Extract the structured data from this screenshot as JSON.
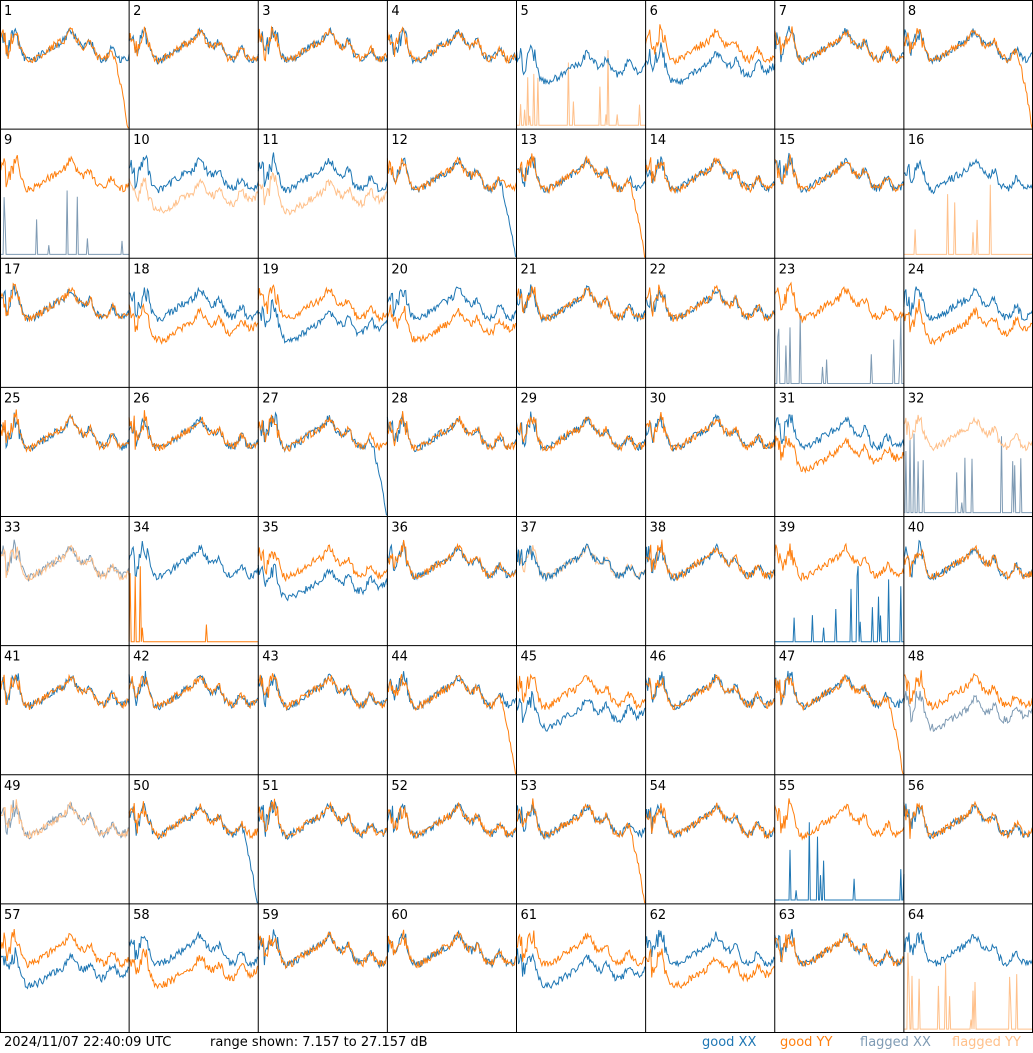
{
  "chart_data": {
    "type": "line",
    "grid": "8x8 small multiples",
    "footer": {
      "timestamp": "2024/11/07 22:40:09 UTC",
      "range_text": "range shown: 7.157 to 27.157 dB"
    },
    "ylim": [
      7.157,
      27.157
    ],
    "legend": {
      "placement": "bottom-right",
      "entries": [
        {
          "name": "good XX",
          "color": "#1f77b4"
        },
        {
          "name": "good YY",
          "color": "#ff7f0e"
        },
        {
          "name": "flagged XX",
          "color": "#7f9bb4"
        },
        {
          "name": "flagged YY",
          "color": "#ffc08a"
        }
      ]
    },
    "panels": [
      {
        "label": "1",
        "xx": "good",
        "yy": "good",
        "xx_mode": "normal",
        "yy_mode": "dropoff"
      },
      {
        "label": "2",
        "xx": "good",
        "yy": "good",
        "xx_mode": "normal",
        "yy_mode": "normal"
      },
      {
        "label": "3",
        "xx": "good",
        "yy": "good",
        "xx_mode": "normal",
        "yy_mode": "normal"
      },
      {
        "label": "4",
        "xx": "good",
        "yy": "good",
        "xx_mode": "normal",
        "yy_mode": "normal"
      },
      {
        "label": "5",
        "xx": "good",
        "yy": "flagged",
        "xx_mode": "low",
        "yy_mode": "spikes"
      },
      {
        "label": "6",
        "xx": "good",
        "yy": "good",
        "xx_mode": "low",
        "yy_mode": "normal"
      },
      {
        "label": "7",
        "xx": "good",
        "yy": "good",
        "xx_mode": "normal",
        "yy_mode": "normal"
      },
      {
        "label": "8",
        "xx": "good",
        "yy": "good",
        "xx_mode": "normal",
        "yy_mode": "dropoff"
      },
      {
        "label": "9",
        "xx": "flagged",
        "yy": "good",
        "xx_mode": "spikes",
        "yy_mode": "normal"
      },
      {
        "label": "10",
        "xx": "good",
        "yy": "flagged",
        "xx_mode": "normal",
        "yy_mode": "low"
      },
      {
        "label": "11",
        "xx": "good",
        "yy": "flagged",
        "xx_mode": "normal",
        "yy_mode": "low"
      },
      {
        "label": "12",
        "xx": "good",
        "yy": "good",
        "xx_mode": "dropoff",
        "yy_mode": "normal"
      },
      {
        "label": "13",
        "xx": "good",
        "yy": "good",
        "xx_mode": "normal",
        "yy_mode": "dropoff"
      },
      {
        "label": "14",
        "xx": "good",
        "yy": "good",
        "xx_mode": "normal",
        "yy_mode": "normal"
      },
      {
        "label": "15",
        "xx": "good",
        "yy": "good",
        "xx_mode": "normal",
        "yy_mode": "normal"
      },
      {
        "label": "16",
        "xx": "good",
        "yy": "flagged",
        "xx_mode": "normal",
        "yy_mode": "spikes"
      },
      {
        "label": "17",
        "xx": "good",
        "yy": "good",
        "xx_mode": "normal",
        "yy_mode": "normal"
      },
      {
        "label": "18",
        "xx": "good",
        "yy": "good",
        "xx_mode": "normal",
        "yy_mode": "low"
      },
      {
        "label": "19",
        "xx": "good",
        "yy": "good",
        "xx_mode": "low",
        "yy_mode": "normal"
      },
      {
        "label": "20",
        "xx": "good",
        "yy": "good",
        "xx_mode": "normal",
        "yy_mode": "low"
      },
      {
        "label": "21",
        "xx": "good",
        "yy": "good",
        "xx_mode": "normal",
        "yy_mode": "normal"
      },
      {
        "label": "22",
        "xx": "good",
        "yy": "good",
        "xx_mode": "normal",
        "yy_mode": "normal"
      },
      {
        "label": "23",
        "xx": "flagged",
        "yy": "good",
        "xx_mode": "spikes",
        "yy_mode": "normal"
      },
      {
        "label": "24",
        "xx": "good",
        "yy": "good",
        "xx_mode": "normal",
        "yy_mode": "low"
      },
      {
        "label": "25",
        "xx": "good",
        "yy": "good",
        "xx_mode": "normal",
        "yy_mode": "normal"
      },
      {
        "label": "26",
        "xx": "good",
        "yy": "good",
        "xx_mode": "normal",
        "yy_mode": "normal"
      },
      {
        "label": "27",
        "xx": "good",
        "yy": "good",
        "xx_mode": "dropoff",
        "yy_mode": "normal"
      },
      {
        "label": "28",
        "xx": "good",
        "yy": "good",
        "xx_mode": "normal",
        "yy_mode": "normal"
      },
      {
        "label": "29",
        "xx": "good",
        "yy": "good",
        "xx_mode": "normal",
        "yy_mode": "normal"
      },
      {
        "label": "30",
        "xx": "good",
        "yy": "good",
        "xx_mode": "normal",
        "yy_mode": "normal"
      },
      {
        "label": "31",
        "xx": "good",
        "yy": "good",
        "xx_mode": "normal",
        "yy_mode": "low"
      },
      {
        "label": "32",
        "xx": "flagged",
        "yy": "flagged",
        "xx_mode": "spikes",
        "yy_mode": "normal"
      },
      {
        "label": "33",
        "xx": "flagged",
        "yy": "flagged",
        "xx_mode": "normal",
        "yy_mode": "normal"
      },
      {
        "label": "34",
        "xx": "good",
        "yy": "good",
        "xx_mode": "normal",
        "yy_mode": "spikes"
      },
      {
        "label": "35",
        "xx": "good",
        "yy": "good",
        "xx_mode": "low",
        "yy_mode": "normal"
      },
      {
        "label": "36",
        "xx": "good",
        "yy": "good",
        "xx_mode": "normal",
        "yy_mode": "normal"
      },
      {
        "label": "37",
        "xx": "good",
        "yy": "flagged",
        "xx_mode": "normal",
        "yy_mode": "normal"
      },
      {
        "label": "38",
        "xx": "good",
        "yy": "good",
        "xx_mode": "normal",
        "yy_mode": "normal"
      },
      {
        "label": "39",
        "xx": "good",
        "yy": "good",
        "xx_mode": "spikes",
        "yy_mode": "normal"
      },
      {
        "label": "40",
        "xx": "good",
        "yy": "good",
        "xx_mode": "normal",
        "yy_mode": "normal"
      },
      {
        "label": "41",
        "xx": "good",
        "yy": "good",
        "xx_mode": "normal",
        "yy_mode": "normal"
      },
      {
        "label": "42",
        "xx": "good",
        "yy": "good",
        "xx_mode": "normal",
        "yy_mode": "normal"
      },
      {
        "label": "43",
        "xx": "good",
        "yy": "good",
        "xx_mode": "normal",
        "yy_mode": "normal"
      },
      {
        "label": "44",
        "xx": "good",
        "yy": "good",
        "xx_mode": "normal",
        "yy_mode": "dropoff"
      },
      {
        "label": "45",
        "xx": "good",
        "yy": "good",
        "xx_mode": "low",
        "yy_mode": "normal"
      },
      {
        "label": "46",
        "xx": "good",
        "yy": "good",
        "xx_mode": "normal",
        "yy_mode": "normal"
      },
      {
        "label": "47",
        "xx": "good",
        "yy": "good",
        "xx_mode": "normal",
        "yy_mode": "dropoff"
      },
      {
        "label": "48",
        "xx": "flagged",
        "yy": "good",
        "xx_mode": "low",
        "yy_mode": "normal"
      },
      {
        "label": "49",
        "xx": "flagged",
        "yy": "flagged",
        "xx_mode": "normal",
        "yy_mode": "normal"
      },
      {
        "label": "50",
        "xx": "good",
        "yy": "good",
        "xx_mode": "dropoff",
        "yy_mode": "normal"
      },
      {
        "label": "51",
        "xx": "good",
        "yy": "good",
        "xx_mode": "normal",
        "yy_mode": "normal"
      },
      {
        "label": "52",
        "xx": "good",
        "yy": "good",
        "xx_mode": "normal",
        "yy_mode": "normal"
      },
      {
        "label": "53",
        "xx": "good",
        "yy": "good",
        "xx_mode": "normal",
        "yy_mode": "dropoff"
      },
      {
        "label": "54",
        "xx": "good",
        "yy": "good",
        "xx_mode": "normal",
        "yy_mode": "normal"
      },
      {
        "label": "55",
        "xx": "good",
        "yy": "good",
        "xx_mode": "spikes",
        "yy_mode": "normal"
      },
      {
        "label": "56",
        "xx": "good",
        "yy": "good",
        "xx_mode": "normal",
        "yy_mode": "normal"
      },
      {
        "label": "57",
        "xx": "good",
        "yy": "good",
        "xx_mode": "low",
        "yy_mode": "normal"
      },
      {
        "label": "58",
        "xx": "good",
        "yy": "good",
        "xx_mode": "normal",
        "yy_mode": "low"
      },
      {
        "label": "59",
        "xx": "good",
        "yy": "good",
        "xx_mode": "normal",
        "yy_mode": "normal"
      },
      {
        "label": "60",
        "xx": "good",
        "yy": "good",
        "xx_mode": "normal",
        "yy_mode": "normal"
      },
      {
        "label": "61",
        "xx": "good",
        "yy": "good",
        "xx_mode": "low",
        "yy_mode": "normal"
      },
      {
        "label": "62",
        "xx": "good",
        "yy": "good",
        "xx_mode": "normal",
        "yy_mode": "low"
      },
      {
        "label": "63",
        "xx": "good",
        "yy": "good",
        "xx_mode": "normal",
        "yy_mode": "normal"
      },
      {
        "label": "64",
        "xx": "good",
        "yy": "flagged",
        "xx_mode": "normal",
        "yy_mode": "spikes"
      }
    ]
  }
}
